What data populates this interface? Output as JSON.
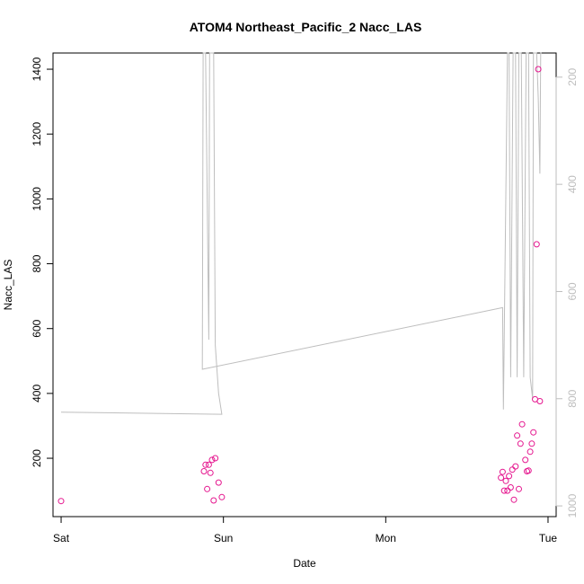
{
  "chart_data": {
    "type": "scatter",
    "title": "ATOM4 Northeast_Pacific_2 Nacc_LAS",
    "xlabel": "Date",
    "ylabel": "Nacc_LAS",
    "x_ticks": [
      "Sat",
      "Sun",
      "Mon",
      "Tue"
    ],
    "xlim_days": [
      -0.05,
      3.05
    ],
    "ylim": [
      20,
      1450
    ],
    "y_ticks": [
      200,
      400,
      600,
      800,
      1000,
      1200,
      1400
    ],
    "y2_ticks": [
      200,
      400,
      600,
      800,
      1000
    ],
    "y2lim": [
      1020,
      155
    ],
    "y2_reversed": true,
    "grid": false,
    "colors": {
      "points": "#e5178f",
      "line": "#bebebe",
      "axis": "#000000",
      "axis2": "#bebebe"
    },
    "series": [
      {
        "type": "scatter",
        "points": [
          [
            0.0,
            68
          ],
          [
            0.88,
            160
          ],
          [
            0.89,
            180
          ],
          [
            0.9,
            105
          ],
          [
            0.91,
            180
          ],
          [
            0.92,
            155
          ],
          [
            0.93,
            195
          ],
          [
            0.94,
            70
          ],
          [
            0.95,
            200
          ],
          [
            0.97,
            125
          ],
          [
            0.99,
            80
          ],
          [
            2.71,
            140
          ],
          [
            2.72,
            158
          ],
          [
            2.73,
            100
          ],
          [
            2.74,
            130
          ],
          [
            2.75,
            100
          ],
          [
            2.76,
            145
          ],
          [
            2.77,
            110
          ],
          [
            2.78,
            165
          ],
          [
            2.79,
            72
          ],
          [
            2.8,
            175
          ],
          [
            2.81,
            270
          ],
          [
            2.82,
            105
          ],
          [
            2.83,
            245
          ],
          [
            2.84,
            305
          ],
          [
            2.86,
            195
          ],
          [
            2.87,
            160
          ],
          [
            2.88,
            162
          ],
          [
            2.89,
            220
          ],
          [
            2.9,
            245
          ],
          [
            2.91,
            280
          ],
          [
            2.92,
            382
          ],
          [
            2.93,
            860
          ],
          [
            2.94,
            1400
          ],
          [
            2.95,
            376
          ]
        ]
      },
      {
        "type": "line",
        "axis": "right",
        "points": [
          [
            0.0,
            825
          ],
          [
            0.99,
            829
          ],
          [
            0.97,
            790
          ],
          [
            0.95,
            700
          ],
          [
            0.94,
            100
          ],
          [
            0.915,
            100
          ],
          [
            0.91,
            690
          ],
          [
            0.89,
            100
          ],
          [
            0.875,
            100
          ],
          [
            0.87,
            740
          ],
          [
            0.87,
            745
          ],
          [
            2.72,
            630
          ],
          [
            2.725,
            820
          ],
          [
            2.75,
            100
          ],
          [
            2.76,
            100
          ],
          [
            2.77,
            760
          ],
          [
            2.785,
            100
          ],
          [
            2.8,
            100
          ],
          [
            2.81,
            760
          ],
          [
            2.82,
            100
          ],
          [
            2.835,
            100
          ],
          [
            2.85,
            760
          ],
          [
            2.865,
            100
          ],
          [
            2.88,
            100
          ],
          [
            2.89,
            760
          ],
          [
            2.905,
            800
          ],
          [
            2.91,
            100
          ],
          [
            2.93,
            100
          ],
          [
            2.94,
            240
          ],
          [
            2.95,
            380
          ],
          [
            2.955,
            100
          ],
          [
            2.96,
            100
          ]
        ]
      }
    ]
  }
}
